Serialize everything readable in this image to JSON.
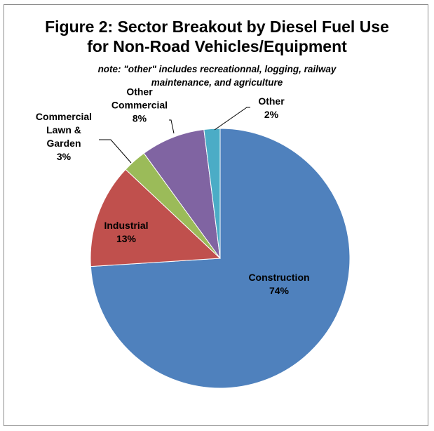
{
  "chart_data": {
    "type": "pie",
    "title": "Figure 2: Sector Breakout by Diesel Fuel Use",
    "title_line2": "for Non-Road Vehicles/Equipment",
    "subtitle_line1": "note: \"other\" includes recreationnal, logging, railway",
    "subtitle_line2": "maintenance, and agriculture",
    "slices": [
      {
        "label_lines": [
          "Construction"
        ],
        "value": 74,
        "display": "74%",
        "color": "#4f81bd"
      },
      {
        "label_lines": [
          "Industrial"
        ],
        "value": 13,
        "display": "13%",
        "color": "#c0504d"
      },
      {
        "label_lines": [
          "Commercial",
          "Lawn &",
          "Garden"
        ],
        "value": 3,
        "display": "3%",
        "color": "#9bbb59"
      },
      {
        "label_lines": [
          "Other",
          "Commercial"
        ],
        "value": 8,
        "display": "8%",
        "color": "#8064a2"
      },
      {
        "label_lines": [
          "Other"
        ],
        "value": 2,
        "display": "2%",
        "color": "#4bacc6"
      }
    ],
    "legend": "none"
  }
}
